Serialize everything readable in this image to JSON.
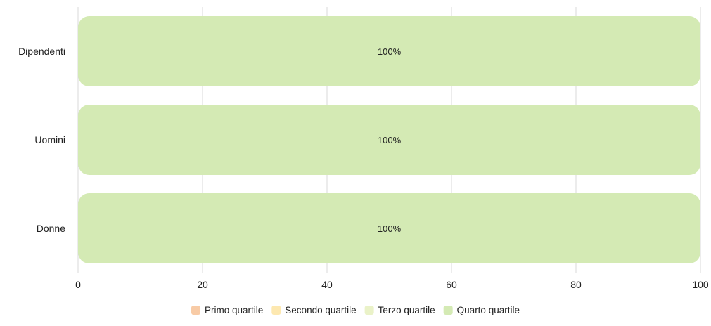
{
  "chart_data": {
    "type": "bar",
    "orientation": "horizontal",
    "stacked": true,
    "categories": [
      "Dipendenti",
      "Uomini",
      "Donne"
    ],
    "series": [
      {
        "name": "Primo quartile",
        "color": "#f8cba6",
        "values": [
          0,
          0,
          0
        ]
      },
      {
        "name": "Secondo quartile",
        "color": "#fde8b0",
        "values": [
          0,
          0,
          0
        ]
      },
      {
        "name": "Terzo quartile",
        "color": "#eaf2c8",
        "values": [
          0,
          0,
          0
        ]
      },
      {
        "name": "Quarto quartile",
        "color": "#d4eab4",
        "values": [
          100,
          100,
          100
        ]
      }
    ],
    "data_labels": [
      "100%",
      "100%",
      "100%"
    ],
    "xlim": [
      0,
      100
    ],
    "x_ticks": [
      0,
      20,
      40,
      60,
      80,
      100
    ],
    "grid": true,
    "legend_position": "bottom"
  }
}
